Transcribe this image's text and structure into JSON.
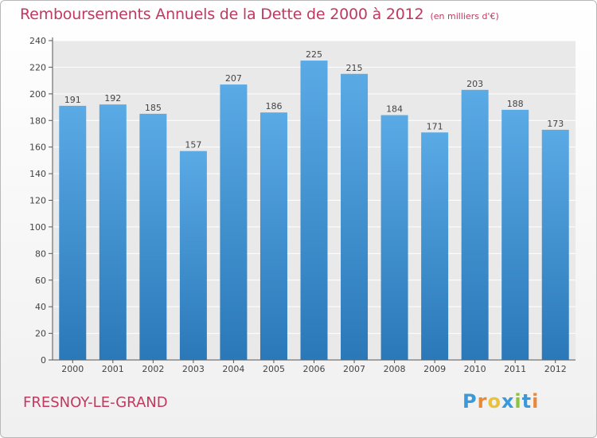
{
  "chart_data": {
    "type": "bar",
    "title": "Remboursements Annuels de la Dette de 2000 à 2012",
    "unit": "(en milliers d'€)",
    "categories": [
      "2000",
      "2001",
      "2002",
      "2003",
      "2004",
      "2005",
      "2006",
      "2007",
      "2008",
      "2009",
      "2010",
      "2011",
      "2012"
    ],
    "values": [
      191,
      192,
      185,
      157,
      207,
      186,
      225,
      215,
      184,
      171,
      203,
      188,
      173
    ],
    "ylim": [
      0,
      240
    ],
    "yticks": [
      0,
      20,
      40,
      60,
      80,
      100,
      120,
      140,
      160,
      180,
      200,
      220,
      240
    ],
    "grid": true,
    "bar_color_top": "#5aaae6",
    "bar_color_bottom": "#2a78b8"
  },
  "commune": "FRESNOY-LE-GRAND",
  "logo": {
    "letters": [
      "P",
      "r",
      "o",
      "x",
      "i",
      "t",
      "i"
    ],
    "colors": [
      "#3a9ad9",
      "#e8893a",
      "#e8c23a",
      "#3a9ad9",
      "#8ac43a",
      "#3a9ad9",
      "#e8893a"
    ]
  }
}
